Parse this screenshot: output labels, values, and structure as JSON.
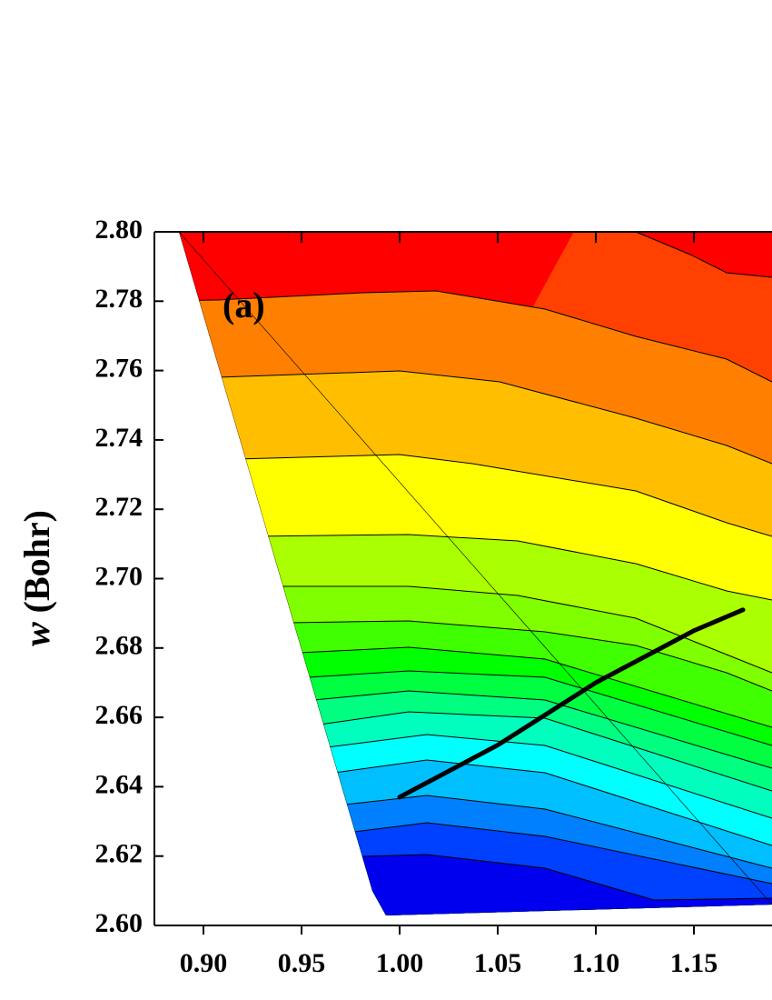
{
  "chart_data": {
    "type": "line",
    "annotation": "(a)",
    "ylabel": {
      "symbol": "w",
      "unit": "(Bohr)"
    },
    "xlim": [
      0.875,
      1.18
    ],
    "ylim": [
      2.6,
      2.8
    ],
    "xticks": [
      {
        "value": 0.9,
        "label": "0.90"
      },
      0.95,
      {
        "value": 1.0,
        "label": "1.00"
      },
      1.05,
      {
        "value": 1.1,
        "label": "1.10"
      },
      1.15
    ],
    "yticks": [
      {
        "value": 2.6,
        "label": "2.60"
      },
      2.62,
      2.64,
      2.66,
      2.68,
      {
        "value": 2.7,
        "label": "2.70"
      },
      2.72,
      2.74,
      2.76,
      2.78,
      {
        "value": 2.8,
        "label": "2.80"
      }
    ],
    "series": [
      {
        "color": "#000000",
        "x": [
          1.0,
          1.05,
          1.1,
          1.15,
          1.175
        ],
        "values": [
          2.637,
          2.652,
          2.67,
          2.685,
          2.691
        ]
      }
    ]
  }
}
